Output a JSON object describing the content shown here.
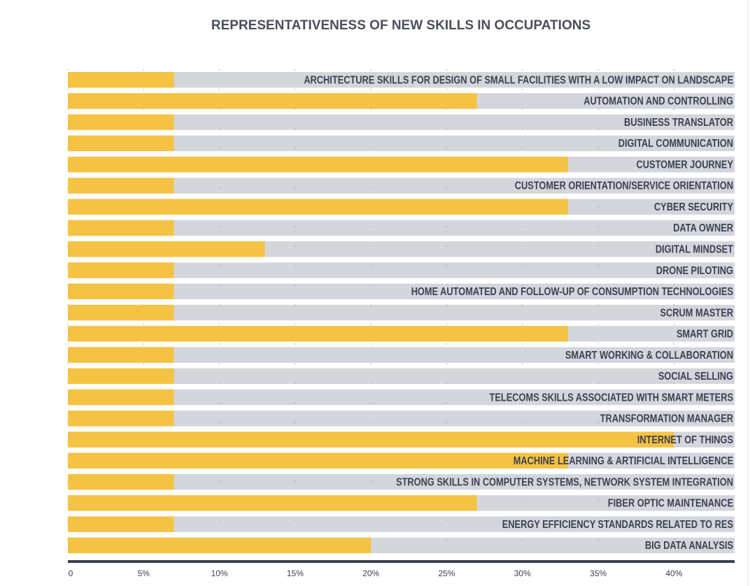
{
  "chart_data": {
    "type": "barh",
    "title": "REPRESENTATIVENESS OF NEW SKILLS IN OCCUPATIONS",
    "categories": [
      "ARCHITECTURE SKILLS FOR DESIGN OF SMALL FACILITIES WITH A LOW IMPACT ON LANDSCAPE",
      "AUTOMATION AND CONTROLLING",
      "BUSINESS TRANSLATOR",
      "DIGITAL COMMUNICATION",
      "CUSTOMER JOURNEY",
      "CUSTOMER ORIENTATION/SERVICE ORIENTATION",
      "CYBER SECURITY",
      "DATA OWNER",
      "DIGITAL MINDSET",
      "DRONE PILOTING",
      "HOME AUTOMATED AND FOLLOW-UP OF CONSUMPTION TECHNOLOGIES",
      "SCRUM MASTER",
      "SMART GRID",
      "SMART WORKING & COLLABORATION",
      "SOCIAL SELLING",
      "TELECOMS SKILLS ASSOCIATED WITH SMART METERS",
      "TRANSFORMATION MANAGER",
      "INTERNET OF THINGS",
      "MACHINE LEARNING & ARTIFICIAL INTELLIGENCE",
      "STRONG SKILLS IN COMPUTER SYSTEMS, NETWORK SYSTEM INTEGRATION",
      "FIBER OPTIC MAINTENANCE",
      "ENERGY EFFICIENCY STANDARDS RELATED TO RES",
      "BIG DATA ANALYSIS"
    ],
    "values": [
      7,
      27,
      7,
      7,
      33,
      7,
      33,
      7,
      13,
      7,
      7,
      7,
      33,
      7,
      7,
      7,
      7,
      40,
      33,
      7,
      27,
      7,
      20
    ],
    "color": "#f5c343",
    "track_color": "#d3d7dc",
    "xlim": [
      0,
      44
    ],
    "xticks": [
      0,
      {
        "value": 5,
        "label": "5%"
      },
      {
        "value": 10,
        "label": "10%"
      },
      {
        "value": 15,
        "label": "15%"
      },
      {
        "value": 20,
        "label": "20%"
      },
      {
        "value": 25,
        "label": "25%"
      },
      {
        "value": 30,
        "label": "30%"
      },
      {
        "value": 35,
        "label": "35%"
      },
      {
        "value": 40,
        "label": "40%"
      }
    ],
    "grid": true
  }
}
